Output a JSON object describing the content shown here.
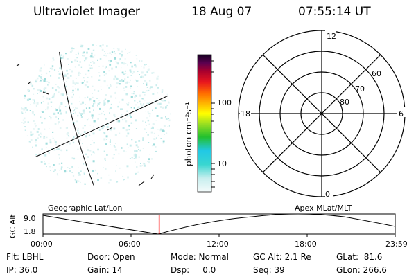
{
  "header": {
    "instrument": "Ultraviolet Imager",
    "date": "18 Aug 07",
    "time": "07:55:14 UT"
  },
  "colorbar": {
    "unit_label": "photon cm⁻²s⁻¹",
    "ticks": [
      "100",
      "10"
    ]
  },
  "polar_plot": {
    "mlt_labels": {
      "top": "12",
      "right": "6",
      "bottom": "0",
      "left": "18"
    },
    "lat_labels": [
      "60",
      "70",
      "80"
    ]
  },
  "timeline": {
    "left_title": "Geographic Lat/Lon",
    "right_title": "Apex MLat/MLT",
    "axis_label": "GC Alt",
    "y_top": "9.0",
    "y_bottom": "1.8",
    "x_ticks": [
      "00:00",
      "06:00",
      "12:00",
      "18:00",
      "23:59"
    ],
    "current_time_fraction": 0.33,
    "marker_color": "#ff0000"
  },
  "info": {
    "row1": {
      "flt": "Flt: LBHL",
      "door": "Door: Open",
      "mode": "Mode: Normal",
      "gcalt": "GC Alt: 2.1 Re",
      "glat": "GLat:  81.6"
    },
    "row2": {
      "ip": "IP: 36.0",
      "gain": "Gain: 14",
      "dsp": "Dsp:     0.0",
      "seq": "Seq: 39",
      "glon": "GLon: 266.6"
    }
  }
}
